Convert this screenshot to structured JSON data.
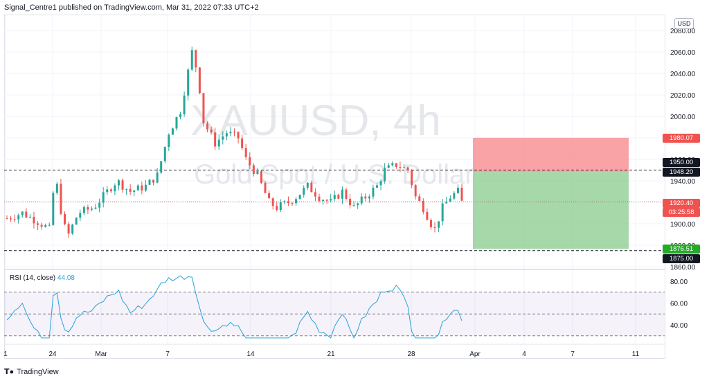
{
  "header": {
    "publisher_line": "Signal_Centre1 published on TradingView.com, Mar 31, 2022 07:33 UTC+2"
  },
  "watermark": {
    "symbol_line": "XAUUSD, 4h",
    "name_line": "Gold Spot / U.S. Dollar"
  },
  "currency_label": "USD",
  "footer": {
    "brand": "TradingView"
  },
  "colors": {
    "up": "#26a69a",
    "down": "#ef5350",
    "rsi": "#26a2d6",
    "rsi_band": "#7e57c2",
    "stop_zone": "#f77c80",
    "target_zone": "#81c784"
  },
  "price_tags": {
    "stop": "1980.07",
    "level_upper": "1950.00",
    "entry": "1948.20",
    "current": "1920.40",
    "countdown": "03:25:58",
    "target": "1876.51",
    "level_lower": "1875.00"
  },
  "rsi": {
    "label": "RSI (14, close)",
    "value": "44.08"
  },
  "chart_data": {
    "type": "candlestick",
    "symbol": "XAUUSD",
    "timeframe": "4h",
    "price_axis": {
      "min": 1860,
      "max": 2080,
      "ticks": [
        1860,
        1880,
        1900,
        1920,
        1940,
        1960,
        1980,
        2000,
        2020,
        2040,
        2060,
        2080
      ],
      "tick_labels": [
        "1860.00",
        "1880.00",
        "1900.00",
        "1920.00",
        "1940.00",
        "1960.00",
        "1980.00",
        "2000.00",
        "2020.00",
        "2040.00",
        "2060.00",
        "2080.00"
      ]
    },
    "time_axis": {
      "labels": [
        "1",
        "24",
        "Mar",
        "7",
        "14",
        "21",
        "28",
        "Apr",
        "4",
        "7",
        "11"
      ]
    },
    "close_series": [
      {
        "x": 0,
        "close": 1905
      },
      {
        "x": 8,
        "close": 1910
      },
      {
        "x": 16,
        "close": 1902
      },
      {
        "x": 22,
        "close": 1895
      },
      {
        "x": 25,
        "close": 1945
      },
      {
        "x": 27,
        "close": 1925
      },
      {
        "x": 29,
        "close": 1900
      },
      {
        "x": 32,
        "close": 1890
      },
      {
        "x": 37,
        "close": 1910
      },
      {
        "x": 45,
        "close": 1915
      },
      {
        "x": 52,
        "close": 1930
      },
      {
        "x": 57,
        "close": 1940
      },
      {
        "x": 64,
        "close": 1930
      },
      {
        "x": 72,
        "close": 1935
      },
      {
        "x": 78,
        "close": 1945
      },
      {
        "x": 84,
        "close": 1985
      },
      {
        "x": 90,
        "close": 2005
      },
      {
        "x": 96,
        "close": 2060
      },
      {
        "x": 99,
        "close": 2040
      },
      {
        "x": 102,
        "close": 1995
      },
      {
        "x": 108,
        "close": 1975
      },
      {
        "x": 114,
        "close": 1985
      },
      {
        "x": 120,
        "close": 1980
      },
      {
        "x": 124,
        "close": 1960
      },
      {
        "x": 130,
        "close": 1945
      },
      {
        "x": 136,
        "close": 1920
      },
      {
        "x": 140,
        "close": 1915
      },
      {
        "x": 146,
        "close": 1920
      },
      {
        "x": 150,
        "close": 1925
      },
      {
        "x": 156,
        "close": 1935
      },
      {
        "x": 162,
        "close": 1925
      },
      {
        "x": 168,
        "close": 1920
      },
      {
        "x": 174,
        "close": 1930
      },
      {
        "x": 180,
        "close": 1915
      },
      {
        "x": 186,
        "close": 1925
      },
      {
        "x": 192,
        "close": 1935
      },
      {
        "x": 196,
        "close": 1950
      },
      {
        "x": 202,
        "close": 1955
      },
      {
        "x": 208,
        "close": 1950
      },
      {
        "x": 212,
        "close": 1925
      },
      {
        "x": 216,
        "close": 1915
      },
      {
        "x": 220,
        "close": 1900
      },
      {
        "x": 222,
        "close": 1895
      },
      {
        "x": 226,
        "close": 1915
      },
      {
        "x": 230,
        "close": 1925
      },
      {
        "x": 234,
        "close": 1930
      },
      {
        "x": 236,
        "close": 1920
      }
    ],
    "trade_box": {
      "stop": 1980.07,
      "entry": 1948.2,
      "target": 1876.51
    },
    "horizontal_levels": [
      1950.0,
      1875.0
    ],
    "current_price": 1920.4,
    "rsi": {
      "period": 14,
      "source": "close",
      "value": 44.08,
      "axis_ticks": [
        40,
        60,
        80
      ],
      "axis_labels": [
        "40.00",
        "60.00",
        "80.00"
      ],
      "bands": [
        30,
        50,
        70
      ]
    }
  }
}
